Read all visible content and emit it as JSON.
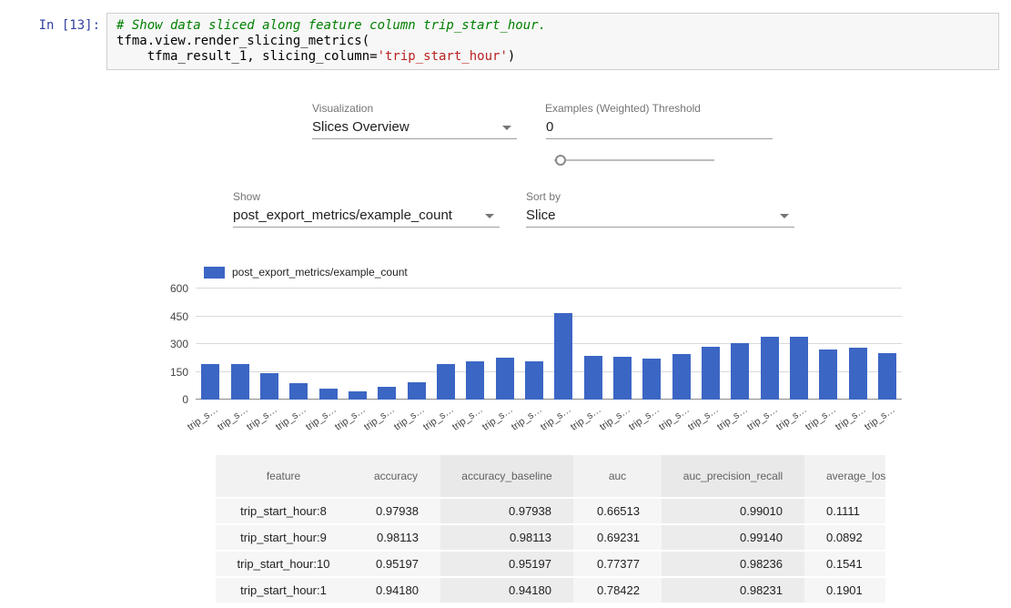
{
  "notebook": {
    "prompt": "In [13]:",
    "code_lines": [
      {
        "segments": [
          {
            "t": "# Show data sliced along feature column trip_start_hour.",
            "c": "comment"
          }
        ]
      },
      {
        "segments": [
          {
            "t": "tfma.view.render_slicing_metrics(",
            "c": "plain"
          }
        ]
      },
      {
        "segments": [
          {
            "t": "    tfma_result_1, slicing_column=",
            "c": "plain"
          },
          {
            "t": "'trip_start_hour'",
            "c": "string"
          },
          {
            "t": ")",
            "c": "plain"
          }
        ]
      }
    ]
  },
  "controls": {
    "visualization": {
      "label": "Visualization",
      "value": "Slices Overview"
    },
    "threshold": {
      "label": "Examples (Weighted) Threshold",
      "value": "0"
    },
    "show": {
      "label": "Show",
      "value": "post_export_metrics/example_count"
    },
    "sort": {
      "label": "Sort by",
      "value": "Slice"
    }
  },
  "chart_data": {
    "type": "bar",
    "legend": "post_export_metrics/example_count",
    "bar_color": "#3b66c4",
    "grid": true,
    "legend_position": "top-left",
    "ylim": [
      0,
      600
    ],
    "y_ticks": [
      0,
      150,
      300,
      450,
      600
    ],
    "x_tick_label": "trip_s…",
    "values": [
      190,
      190,
      145,
      88,
      60,
      45,
      70,
      92,
      190,
      205,
      225,
      205,
      468,
      235,
      230,
      220,
      245,
      285,
      305,
      338,
      338,
      270,
      278,
      252
    ]
  },
  "table": {
    "columns": [
      "feature",
      "accuracy",
      "accuracy_baseline",
      "auc",
      "auc_precision_recall",
      "average_los"
    ],
    "rows": [
      [
        "trip_start_hour:8",
        "0.97938",
        "0.97938",
        "0.66513",
        "0.99010",
        "0.1111"
      ],
      [
        "trip_start_hour:9",
        "0.98113",
        "0.98113",
        "0.69231",
        "0.99140",
        "0.0892"
      ],
      [
        "trip_start_hour:10",
        "0.95197",
        "0.95197",
        "0.77377",
        "0.98236",
        "0.1541"
      ],
      [
        "trip_start_hour:1",
        "0.94180",
        "0.94180",
        "0.78422",
        "0.98231",
        "0.1901"
      ]
    ]
  }
}
